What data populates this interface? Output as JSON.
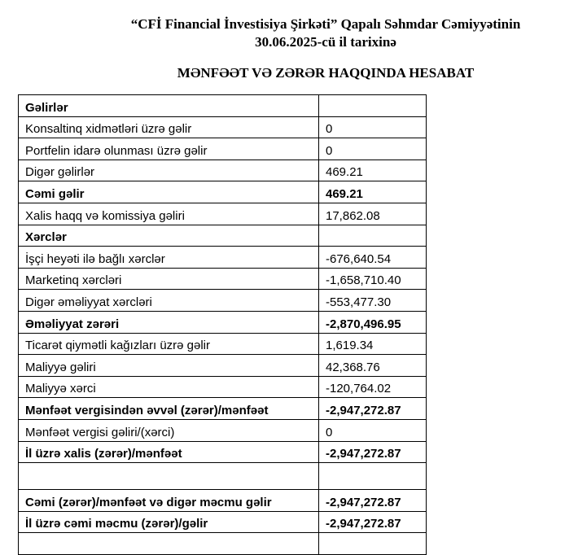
{
  "header": {
    "line1": "“CFİ Financial İnvestisiya Şirkəti” Qapalı Səhmdar Cəmiyyətinin",
    "line2": "30.06.2025-cü il tarixinə",
    "report_title": "MƏNFƏƏT VƏ ZƏRƏR HAQQINDA HESABAT"
  },
  "rows": [
    {
      "label": "Gəlirlər",
      "value": "",
      "bold": true
    },
    {
      "label": "Konsaltinq xidmətləri üzrə gəlir",
      "value": "0"
    },
    {
      "label": "Portfelin idarə olunması üzrə gəlir",
      "value": "0"
    },
    {
      "label": "Digər gəlirlər",
      "value": "469.21"
    },
    {
      "label": "Cəmi gəlir",
      "value": "469.21",
      "bold": true
    },
    {
      "label": "Xalis haqq və komissiya gəliri",
      "value": "17,862.08"
    },
    {
      "label": "Xərclər",
      "value": "",
      "bold": true
    },
    {
      "label": "İşçi heyəti ilə bağlı xərclər",
      "value": "-676,640.54"
    },
    {
      "label": "Marketinq xərcləri",
      "value": "-1,658,710.40"
    },
    {
      "label": "Digər əməliyyat xərcləri",
      "value": "-553,477.30"
    },
    {
      "label": "Əməliyyat zərəri",
      "value": "-2,870,496.95",
      "bold": true
    },
    {
      "label": "Ticarət qiymətli kağızları üzrə gəlir",
      "value": "1,619.34"
    },
    {
      "label": "Maliyyə gəliri",
      "value": "42,368.76"
    },
    {
      "label": "Maliyyə xərci",
      "value": "-120,764.02"
    },
    {
      "label": "Mənfəət vergisindən əvvəl (zərər)/mənfəət",
      "value": "-2,947,272.87",
      "bold": true
    },
    {
      "label": "Mənfəət vergisi gəliri/(xərci)",
      "value": "0"
    },
    {
      "label": "İl üzrə xalis (zərər)/mənfəət",
      "value": "-2,947,272.87",
      "bold": true
    },
    {
      "label": "",
      "value": "",
      "tall": true
    },
    {
      "label": "Cəmi (zərər)/mənfəət və digər məcmu gəlir",
      "value": "-2,947,272.87",
      "bold": true
    },
    {
      "label": "İl üzrə cəmi məcmu (zərər)/gəlir",
      "value": "-2,947,272.87",
      "bold": true
    },
    {
      "label": "",
      "value": ""
    }
  ]
}
